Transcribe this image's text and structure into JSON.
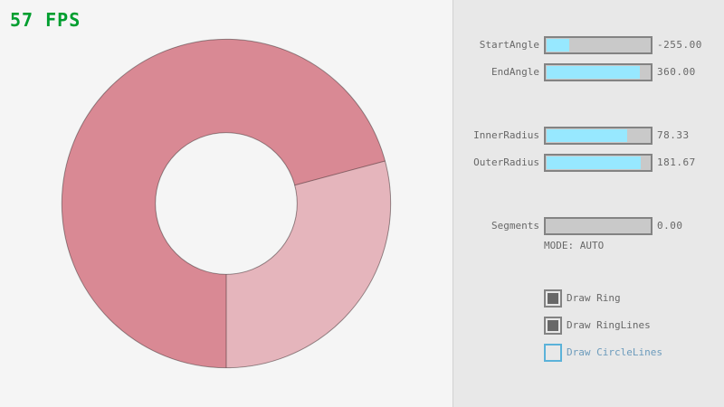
{
  "fps": {
    "label": "57 FPS",
    "color": "#009e2f"
  },
  "ring": {
    "start_angle": -255.0,
    "end_angle": 360.0,
    "inner_radius": 78.33,
    "outer_radius": 181.67,
    "segments": 0,
    "color_double_pass": "#d98994",
    "color_single_pass": "#e5b5bc",
    "outline_color": "rgba(0,0,0,0.38)"
  },
  "panel": {
    "sliders": [
      {
        "name": "start-angle",
        "label": "StartAngle",
        "value": "-255.00",
        "fill_pct": 21.67
      },
      {
        "name": "end-angle",
        "label": "EndAngle",
        "value": "360.00",
        "fill_pct": 90.0
      },
      {
        "name": "inner-radius",
        "label": "InnerRadius",
        "value": "78.33",
        "fill_pct": 78.33
      },
      {
        "name": "outer-radius",
        "label": "OuterRadius",
        "value": "181.67",
        "fill_pct": 90.83
      },
      {
        "name": "segments",
        "label": "Segments",
        "value": "0.00",
        "fill_pct": 0
      }
    ],
    "mode_label": "MODE: AUTO",
    "checkboxes": [
      {
        "name": "draw-ring",
        "label": "Draw Ring",
        "checked": true,
        "focused": false
      },
      {
        "name": "draw-ring-lines",
        "label": "Draw RingLines",
        "checked": true,
        "focused": false
      },
      {
        "name": "draw-circle-lines",
        "label": "Draw CircleLines",
        "checked": false,
        "focused": true
      }
    ]
  },
  "colors": {
    "panel_bg": "#e8e8e8",
    "panel_divider": "#d2d2d2",
    "canvas_bg": "#f5f5f5",
    "border_color": "#838383",
    "track_color": "#c9c9c9",
    "fill_color": "#97e8ff",
    "text_color": "#686868",
    "check_color": "#686868",
    "focus_border": "#5bb2d9",
    "focus_text": "#6c9bbc",
    "fps_color": "#009e2f"
  }
}
